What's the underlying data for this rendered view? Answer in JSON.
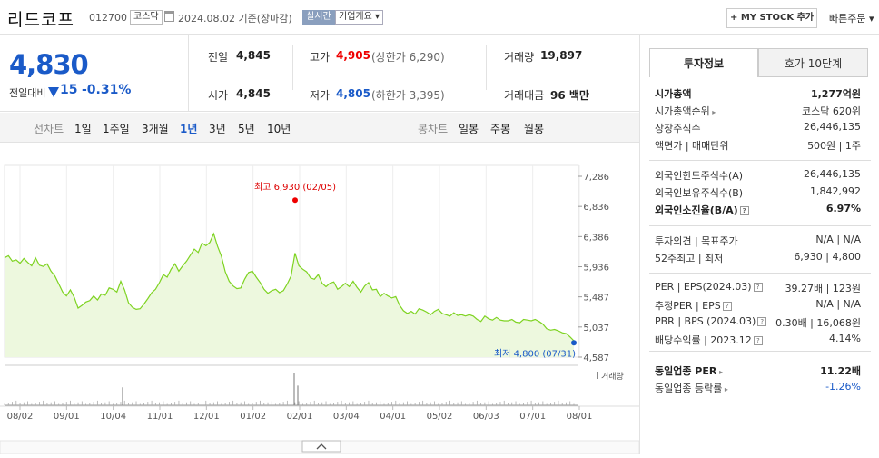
{
  "header": {
    "stock_name": "리드코프",
    "stock_code": "012700",
    "market": "코스닥",
    "date_text": "2024.08.02 기준(장마감)",
    "realtime_label": "실시간",
    "company_info_label": "기업개요 ▾",
    "mystock_label": "+ MY STOCK 추가",
    "quick_order_label": "빠른주문 ▾"
  },
  "price": {
    "current": "4,830",
    "prev_label": "전일대비",
    "change": "15",
    "change_pct": "-0.31%",
    "direction": "down"
  },
  "quote": {
    "prev_close_label": "전일",
    "prev_close": "4,845",
    "high_label": "고가",
    "high": "4,905",
    "upper_limit": "(상한가 6,290)",
    "volume_label": "거래량",
    "volume": "19,897",
    "open_label": "시가",
    "open": "4,845",
    "low_label": "저가",
    "low": "4,805",
    "lower_limit": "(하한가 3,395)",
    "amount_label": "거래대금",
    "amount": "96 백만"
  },
  "periods": {
    "line_label": "선차트",
    "line_items": [
      "1일",
      "1주일",
      "3개월",
      "1년",
      "3년",
      "5년",
      "10년"
    ],
    "active": "1년",
    "candle_label": "봉차트",
    "candle_items": [
      "일봉",
      "주봉",
      "월봉"
    ]
  },
  "chart_data": {
    "type": "area",
    "y_ticks": [
      "7,286",
      "6,836",
      "6,386",
      "5,936",
      "5,487",
      "5,037",
      "4,587"
    ],
    "ylim": [
      4587,
      7286
    ],
    "x_ticks": [
      "08/02",
      "09/01",
      "10/04",
      "11/01",
      "12/01",
      "01/02",
      "02/01",
      "03/04",
      "04/01",
      "05/02",
      "06/03",
      "07/01",
      "08/01"
    ],
    "high_annotation": "최고 6,930 (02/05)",
    "low_annotation": "최저 4,800 (07/31)",
    "volume_label": "거래량",
    "line_color": "#7ed321",
    "series": [
      {
        "values": [
          6070,
          6100,
          6020,
          6040,
          5990,
          6060,
          6000,
          5950,
          6070,
          5960,
          5940,
          5980,
          5870,
          5800,
          5680,
          5560,
          5500,
          5590,
          5480,
          5320,
          5360,
          5410,
          5430,
          5500,
          5440,
          5530,
          5510,
          5620,
          5600,
          5560,
          5720,
          5590,
          5400,
          5330,
          5300,
          5310,
          5380,
          5460,
          5550,
          5600,
          5700,
          5820,
          5780,
          5900,
          5980,
          5870,
          5950,
          6020,
          6110,
          6200,
          6150,
          6290,
          6250,
          6300,
          6430,
          6240,
          6090,
          5860,
          5720,
          5650,
          5610,
          5620,
          5750,
          5850,
          5870,
          5780,
          5700,
          5600,
          5540,
          5580,
          5600,
          5550,
          5580,
          5680,
          5800,
          6140,
          5950,
          5900,
          5860,
          5770,
          5750,
          5820,
          5690,
          5640,
          5690,
          5710,
          5600,
          5640,
          5690,
          5640,
          5720,
          5630,
          5560,
          5650,
          5700,
          5590,
          5600,
          5490,
          5540,
          5500,
          5470,
          5490,
          5360,
          5280,
          5240,
          5270,
          5230,
          5310,
          5290,
          5260,
          5220,
          5270,
          5300,
          5240,
          5220,
          5200,
          5250,
          5210,
          5220,
          5200,
          5220,
          5200,
          5150,
          5120,
          5200,
          5160,
          5140,
          5180,
          5140,
          5130,
          5130,
          5150,
          5110,
          5100,
          5150,
          5140,
          5130,
          5150,
          5120,
          5080,
          5010,
          4990,
          5000,
          4980,
          4950,
          4940,
          4890,
          4830
        ]
      }
    ],
    "volume_spikes": [
      {
        "x": "11/01",
        "rel": 0.55
      },
      {
        "x": "02/01",
        "rel": 1.0
      },
      {
        "x": "02/05",
        "rel": 0.6
      }
    ]
  },
  "investment": {
    "tab_active": "투자정보",
    "tab_other": "호가 10단계",
    "rows1": [
      {
        "label": "시가총액",
        "value": "1,277억원",
        "bold": true
      },
      {
        "label": "시가총액순위",
        "value": "코스닥 620위",
        "arrow": true
      },
      {
        "label": "상장주식수",
        "value": "26,446,135"
      },
      {
        "label": "액면가 | 매매단위",
        "value": "500원 | 1주"
      }
    ],
    "rows2": [
      {
        "label": "외국인한도주식수(A)",
        "value": "26,446,135"
      },
      {
        "label": "외국인보유주식수(B)",
        "value": "1,842,992"
      },
      {
        "label": "외국인소진율(B/A)",
        "value": "6.97%",
        "bold": true,
        "help": true
      }
    ],
    "rows3": [
      {
        "label": "투자의견 | 목표주가",
        "value": "N/A | N/A"
      },
      {
        "label": "52주최고 | 최저",
        "value": "6,930 | 4,800"
      }
    ],
    "rows4": [
      {
        "label": "PER | EPS(2024.03)",
        "value": "39.27배 | 123원",
        "help": true
      },
      {
        "label": "추정PER | EPS",
        "value": "N/A | N/A",
        "help": true
      },
      {
        "label": "PBR | BPS (2024.03)",
        "value": "0.30배 | 16,068원",
        "help": true
      },
      {
        "label": "배당수익률 | 2023.12",
        "value": "4.14%",
        "help": true
      }
    ],
    "rows5": [
      {
        "label": "동일업종 PER",
        "value": "11.22배",
        "bold": true,
        "arrow": true
      },
      {
        "label": "동일업종 등락률",
        "value": "-1.26%",
        "blue": true,
        "arrow": true
      }
    ]
  }
}
